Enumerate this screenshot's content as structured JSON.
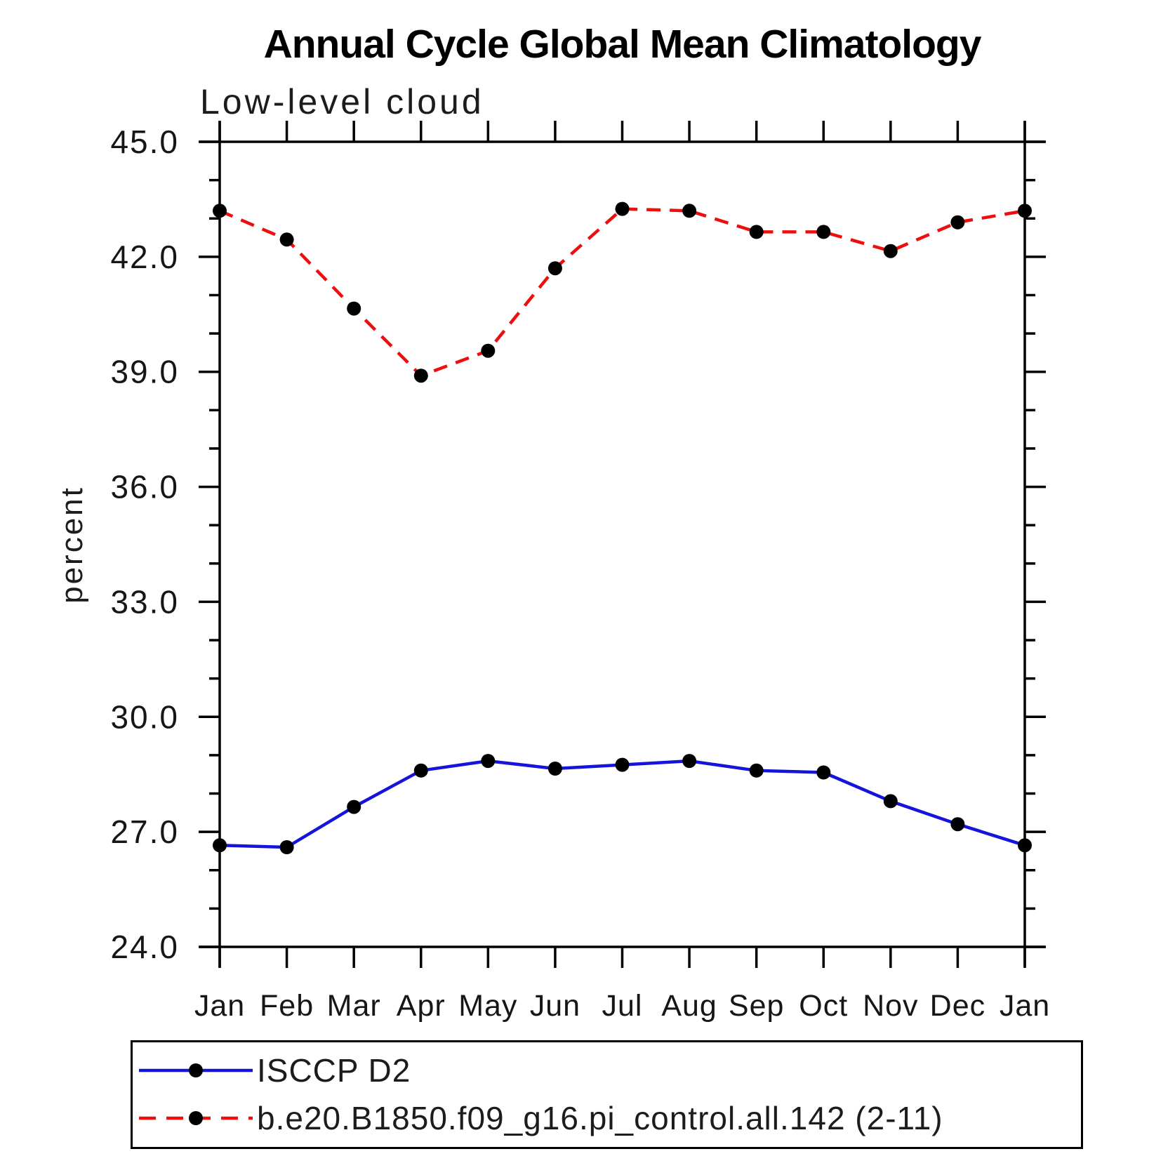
{
  "title": "Annual Cycle Global Mean Climatology",
  "subtitle": "Low-level cloud",
  "ylabel": "percent",
  "colors": {
    "obs_line": "#1414dd",
    "model_line": "#ee0e0e",
    "marker": "#000000",
    "axis": "#000000"
  },
  "chart_data": {
    "type": "line",
    "title": "Annual Cycle Global Mean Climatology",
    "subtitle": "Low-level cloud",
    "xlabel": "",
    "ylabel": "percent",
    "x": [
      "Jan",
      "Feb",
      "Mar",
      "Apr",
      "May",
      "Jun",
      "Jul",
      "Aug",
      "Sep",
      "Oct",
      "Nov",
      "Dec",
      "Jan"
    ],
    "series": [
      {
        "name": "ISCCP D2",
        "color": "#1414dd",
        "line": "solid",
        "marker": "filled-black-circle",
        "values": [
          26.65,
          26.6,
          27.65,
          28.6,
          28.85,
          28.65,
          28.75,
          28.85,
          28.6,
          28.55,
          27.8,
          27.2,
          26.65
        ]
      },
      {
        "name": "b.e20.B1850.f09_g16.pi_control.all.142 (2-11)",
        "color": "#ee0e0e",
        "line": "dashed",
        "marker": "filled-black-circle",
        "values": [
          43.2,
          42.45,
          40.65,
          38.9,
          39.55,
          41.7,
          43.25,
          43.2,
          42.65,
          42.65,
          42.15,
          42.9,
          43.2
        ]
      }
    ],
    "ylim": [
      24.0,
      45.0
    ],
    "ytick_major_step": 3.0,
    "ytick_minor_step": 1.0,
    "ytick_labels": [
      "24.0",
      "27.0",
      "30.0",
      "33.0",
      "36.0",
      "39.0",
      "42.0",
      "45.0"
    ],
    "grid": false,
    "legend_position": "bottom-left"
  }
}
